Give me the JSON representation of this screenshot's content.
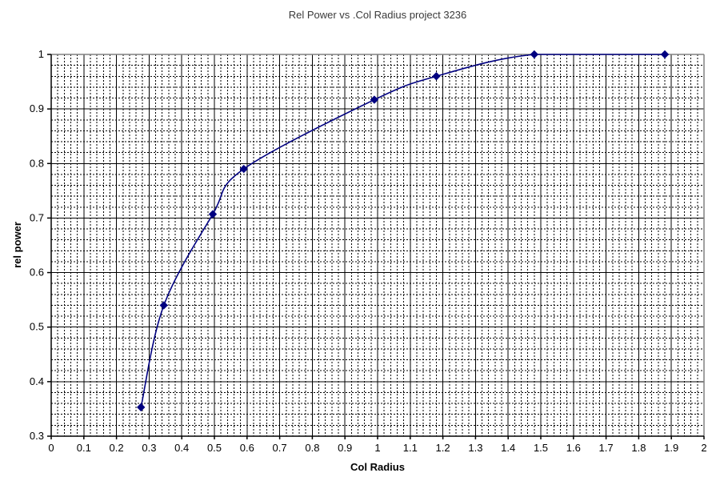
{
  "chart_data": {
    "type": "line",
    "title": "Rel Power vs .Col Radius project 3236",
    "xlabel": "Col Radius",
    "ylabel": "rel power",
    "xlim": [
      0,
      2
    ],
    "ylim": [
      0.3,
      1
    ],
    "x_major_step": 0.1,
    "x_minor_step": 0.02,
    "y_major_step": 0.1,
    "y_minor_step": 0.02,
    "grid": {
      "major": "solid",
      "minor": "dashed",
      "visible": true
    },
    "legend": "none",
    "x_tick_labels": [
      "0",
      "0.1",
      "0.2",
      "0.3",
      "0.4",
      "0.5",
      "0.6",
      "0.7",
      "0.8",
      "0.9",
      "1",
      "1.1",
      "1.2",
      "1.3",
      "1.4",
      "1.5",
      "1.6",
      "1.7",
      "1.8",
      "1.9",
      "2"
    ],
    "y_tick_labels": [
      "0.3",
      "0.4",
      "0.5",
      "0.6",
      "0.7",
      "0.8",
      "0.9",
      "1"
    ],
    "series": [
      {
        "name": "rel power",
        "marker": "diamond",
        "smooth": true,
        "points": [
          [
            0.275,
            0.353
          ],
          [
            0.345,
            0.54
          ],
          [
            0.495,
            0.707
          ],
          [
            0.59,
            0.79
          ],
          [
            0.99,
            0.917
          ],
          [
            1.18,
            0.96
          ],
          [
            1.48,
            1.0
          ],
          [
            1.88,
            1.0
          ]
        ]
      }
    ],
    "colors": {
      "series": "#000080",
      "major_grid": "#000000",
      "minor_grid": "#000000",
      "axis": "#000000",
      "plot_border": "#808080",
      "title_text": "#3a3a3a",
      "label_text": "#000000",
      "background": "#ffffff"
    }
  }
}
